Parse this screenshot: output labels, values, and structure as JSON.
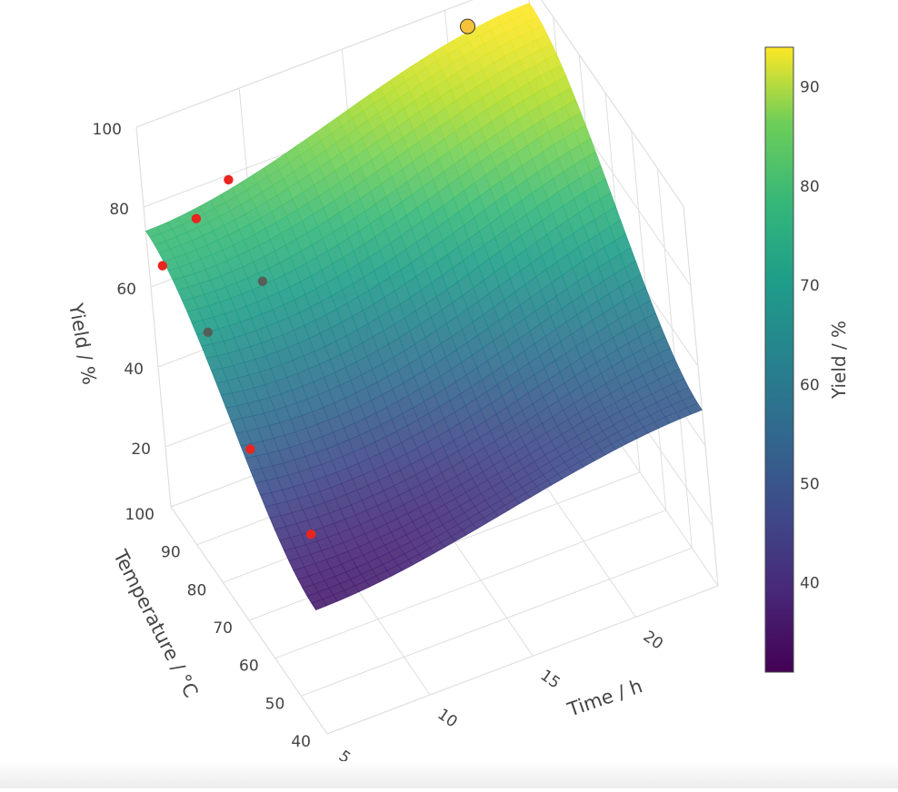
{
  "chart_data": {
    "type": "surface",
    "title": "",
    "axes": {
      "x": {
        "label": "Time / h",
        "ticks": [
          "5",
          "10",
          "15",
          "20"
        ],
        "range": [
          5,
          24
        ]
      },
      "y": {
        "label": "Temperature / °C",
        "ticks": [
          "40",
          "50",
          "60",
          "70",
          "80",
          "90",
          "100"
        ],
        "range": [
          40,
          100
        ]
      },
      "z": {
        "label": "Yield / %",
        "ticks": [
          "20",
          "40",
          "60",
          "80",
          "100"
        ],
        "range": [
          5,
          100
        ]
      }
    },
    "grid": true,
    "surface": {
      "x": [
        5,
        24
      ],
      "y": [
        40,
        100
      ],
      "approx_range": [
        33,
        94
      ],
      "corners": [
        {
          "x": 5,
          "y": 40,
          "z": 36
        },
        {
          "x": 24,
          "y": 40,
          "z": 49
        },
        {
          "x": 5,
          "y": 100,
          "z": 74
        },
        {
          "x": 24,
          "y": 100,
          "z": 94
        }
      ]
    },
    "points": [
      {
        "x": 5,
        "y": 94,
        "z": 71,
        "color": "#e8261f"
      },
      {
        "x": 7,
        "y": 96,
        "z": 77,
        "color": "#e8261f"
      },
      {
        "x": 9,
        "y": 99,
        "z": 80,
        "color": "#e8261f"
      },
      {
        "x": 6,
        "y": 86,
        "z": 60,
        "color": "#555f5a"
      },
      {
        "x": 9,
        "y": 88,
        "z": 65,
        "color": "#555f5a"
      },
      {
        "x": 6,
        "y": 72,
        "z": 44,
        "color": "#e8261f"
      },
      {
        "x": 7,
        "y": 58,
        "z": 34,
        "color": "#e8261f"
      },
      {
        "x": 21,
        "y": 100,
        "z": 94,
        "color": "#f5c33a",
        "highlight": true
      }
    ],
    "colorbar": {
      "title": "Yield / %",
      "ticks": [
        "40",
        "50",
        "60",
        "70",
        "80",
        "90"
      ],
      "range": [
        31,
        94
      ],
      "colorscale": "Viridis"
    }
  }
}
